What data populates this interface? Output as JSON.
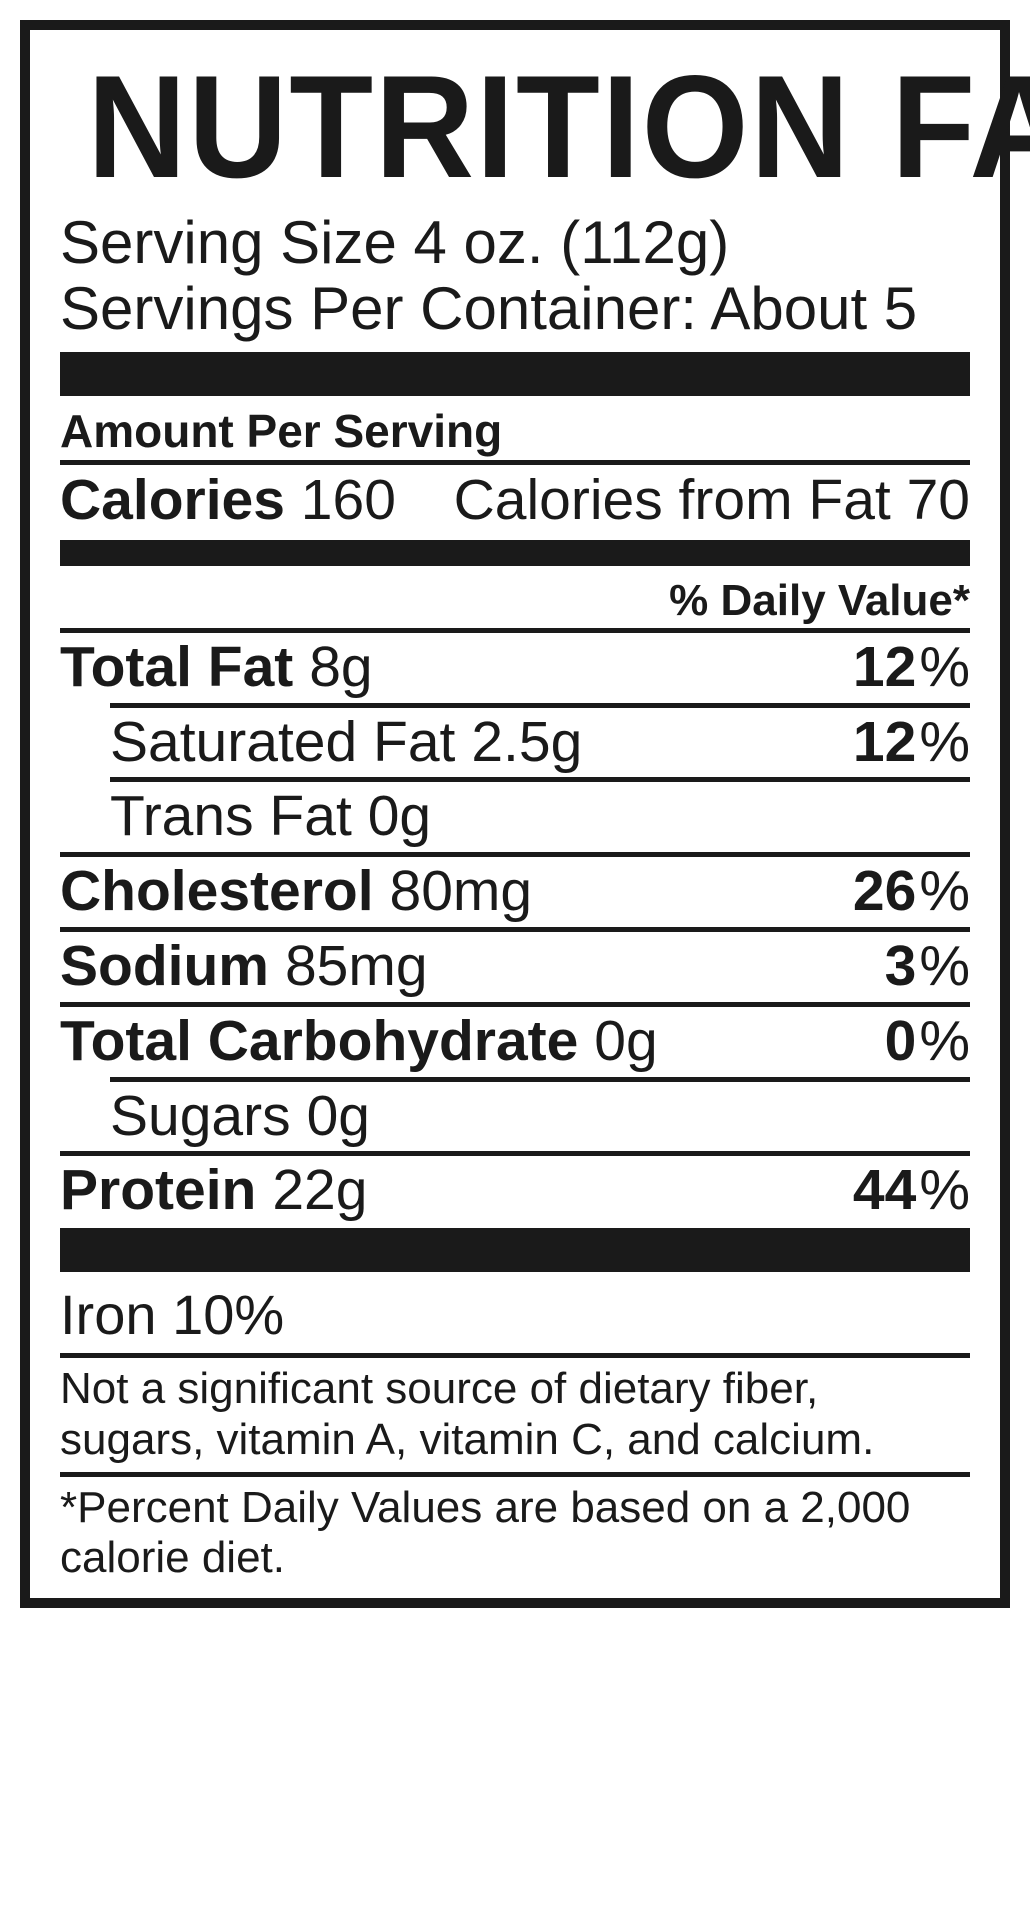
{
  "title": "NUTRITION FACTS",
  "serving": {
    "size_label": "Serving Size",
    "size_value": "4 oz. (112g)",
    "per_container_label": "Servings Per Container:",
    "per_container_value": "About 5"
  },
  "aps_label": "Amount Per Serving",
  "calories": {
    "label": "Calories",
    "value": "160",
    "from_fat_label": "Calories from Fat",
    "from_fat_value": "70"
  },
  "dv_header": "% Daily Value*",
  "nutrients": {
    "total_fat": {
      "name": "Total Fat",
      "value": "8g",
      "pct": "12"
    },
    "sat_fat": {
      "name": "Saturated Fat",
      "value": "2.5g",
      "pct": "12"
    },
    "trans_fat": {
      "name": "Trans Fat",
      "value": "0g",
      "pct": ""
    },
    "cholesterol": {
      "name": "Cholesterol",
      "value": "80mg",
      "pct": "26"
    },
    "sodium": {
      "name": "Sodium",
      "value": "85mg",
      "pct": "3"
    },
    "total_carb": {
      "name": "Total Carbohydrate",
      "value": "0g",
      "pct": "0"
    },
    "sugars": {
      "name": "Sugars",
      "value": "0g",
      "pct": ""
    },
    "protein": {
      "name": "Protein",
      "value": "22g",
      "pct": "44"
    }
  },
  "vitamins": {
    "iron": {
      "name": "Iron",
      "value": "10%"
    }
  },
  "footnotes": {
    "not_significant": "Not a significant source of dietary fiber, sugars, vitamin A, vitamin C, and calcium.",
    "dv_basis": "*Percent Daily Values are based on a 2,000 calorie diet."
  },
  "colors": {
    "text": "#1a1a1a",
    "background": "#ffffff",
    "border": "#1a1a1a"
  }
}
